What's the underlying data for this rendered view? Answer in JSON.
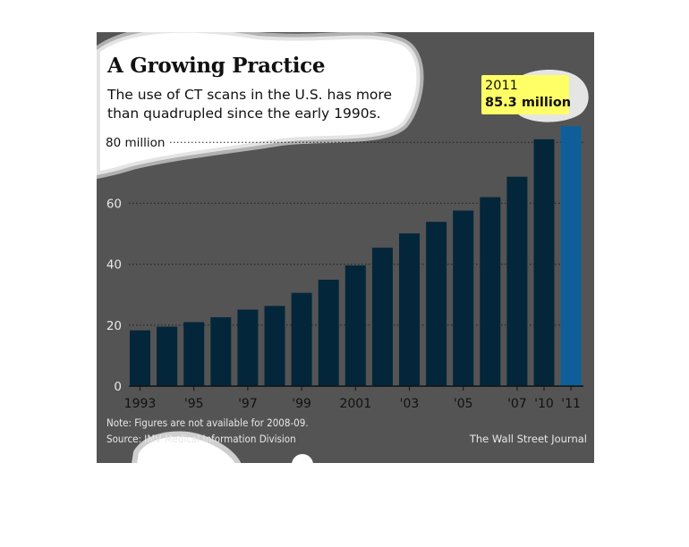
{
  "chart_data": {
    "type": "bar",
    "title": "A Growing Practice",
    "subtitle": "The use of CT scans in the U.S. has more than quadrupled since the early 1990s.",
    "categories": [
      "1993",
      "1994",
      "1995",
      "1996",
      "1997",
      "1998",
      "1999",
      "2000",
      "2001",
      "2002",
      "2003",
      "2004",
      "2005",
      "2006",
      "2007",
      "2010",
      "2011"
    ],
    "values": [
      18.3,
      19.5,
      21.0,
      22.6,
      25.1,
      26.3,
      30.6,
      34.9,
      39.6,
      45.4,
      50.1,
      53.9,
      57.6,
      62.0,
      68.7,
      81.0,
      85.3
    ],
    "tick_labels": [
      "1993",
      "",
      "'95",
      "",
      "'97",
      "",
      "'99",
      "",
      "2001",
      "",
      "'03",
      "",
      "'05",
      "",
      "'07",
      "'10",
      "'11"
    ],
    "y_ticks": [
      {
        "value": 0,
        "label": "0"
      },
      {
        "value": 20,
        "label": "20"
      },
      {
        "value": 40,
        "label": "40"
      },
      {
        "value": 60,
        "label": "60"
      },
      {
        "value": 80,
        "label": "80 million"
      }
    ],
    "ylim": [
      0,
      88
    ],
    "grid": true,
    "annotation": {
      "year": "2011",
      "value": "85.3 million"
    },
    "note": "Note: Figures are not available for 2008-09.",
    "source": "Source: IMV Medical Information Division",
    "credit": "The Wall Street Journal"
  },
  "colors": {
    "background": "#545454",
    "bar": "#04263a",
    "highlight_bar": "#0e5f99",
    "callout": "#ffff66",
    "grid": "#1f1f1f",
    "text_light": "#e8e8e8",
    "blob": "#ffffff"
  }
}
